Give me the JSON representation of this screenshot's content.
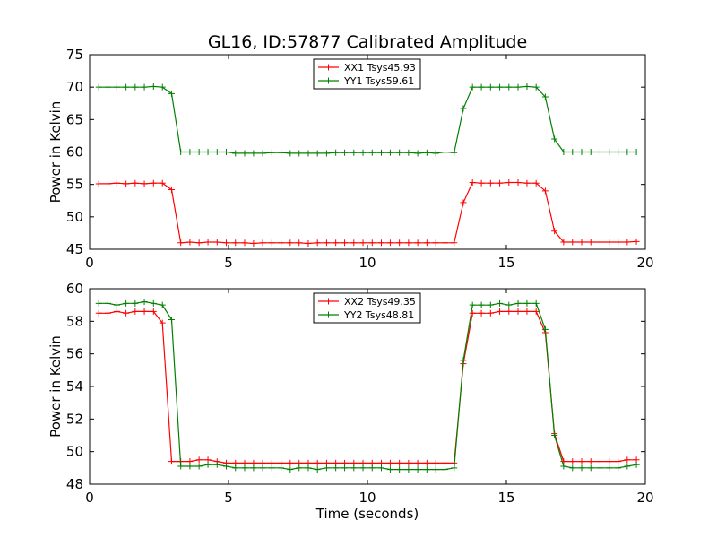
{
  "title": "GL16, ID:57877 Calibrated Amplitude",
  "chart_data": [
    {
      "type": "line",
      "title": "GL16, ID:57877 Calibrated Amplitude",
      "xlabel": "",
      "ylabel": "Power in Kelvin",
      "xlim": [
        0,
        20
      ],
      "ylim": [
        45,
        75
      ],
      "xticks": [
        0,
        5,
        10,
        15,
        20
      ],
      "yticks": [
        45,
        50,
        55,
        60,
        65,
        70,
        75
      ],
      "grid": false,
      "legend": "top-center",
      "x": [
        0.33,
        0.66,
        0.98,
        1.31,
        1.64,
        1.97,
        2.3,
        2.62,
        2.95,
        3.28,
        3.61,
        3.94,
        4.26,
        4.59,
        4.92,
        5.25,
        5.58,
        5.9,
        6.23,
        6.56,
        6.89,
        7.22,
        7.54,
        7.87,
        8.2,
        8.53,
        8.86,
        9.18,
        9.51,
        9.84,
        10.17,
        10.5,
        10.82,
        11.15,
        11.48,
        11.81,
        12.14,
        12.46,
        12.79,
        13.12,
        13.45,
        13.78,
        14.1,
        14.43,
        14.76,
        15.09,
        15.42,
        15.74,
        16.07,
        16.4,
        16.73,
        17.06,
        17.38,
        17.71,
        18.04,
        18.37,
        18.7,
        19.02,
        19.35,
        19.68
      ],
      "series": [
        {
          "name": "XX1 Tsys45.93",
          "color": "#ff0000",
          "values": [
            55.1,
            55.1,
            55.2,
            55.1,
            55.2,
            55.1,
            55.2,
            55.2,
            54.2,
            46.0,
            46.1,
            46.0,
            46.1,
            46.1,
            46.0,
            46.0,
            46.0,
            45.9,
            46.0,
            46.0,
            46.0,
            46.0,
            46.0,
            45.9,
            46.0,
            46.0,
            46.0,
            46.0,
            46.0,
            46.0,
            46.0,
            46.0,
            46.0,
            46.0,
            46.0,
            46.0,
            46.0,
            46.0,
            46.0,
            46.0,
            52.2,
            55.3,
            55.2,
            55.2,
            55.2,
            55.3,
            55.3,
            55.2,
            55.2,
            54.0,
            47.8,
            46.1,
            46.1,
            46.1,
            46.1,
            46.1,
            46.1,
            46.1,
            46.1,
            46.2
          ]
        },
        {
          "name": "YY1 Tsys59.61",
          "color": "#008000",
          "values": [
            70.0,
            70.0,
            70.0,
            70.0,
            70.0,
            70.0,
            70.1,
            70.0,
            69.0,
            60.0,
            60.0,
            60.0,
            60.0,
            60.0,
            60.0,
            59.8,
            59.8,
            59.8,
            59.8,
            59.9,
            59.9,
            59.8,
            59.8,
            59.8,
            59.8,
            59.8,
            59.9,
            59.9,
            59.9,
            59.9,
            59.9,
            59.9,
            59.9,
            59.9,
            59.9,
            59.8,
            59.9,
            59.8,
            60.0,
            59.9,
            66.7,
            70.0,
            70.0,
            70.0,
            70.0,
            70.0,
            70.0,
            70.1,
            70.0,
            68.5,
            62.0,
            60.0,
            60.0,
            60.0,
            60.0,
            60.0,
            60.0,
            60.0,
            60.0,
            60.0
          ]
        }
      ]
    },
    {
      "type": "line",
      "title": "",
      "xlabel": "Time (seconds)",
      "ylabel": "Power in Kelvin",
      "xlim": [
        0,
        20
      ],
      "ylim": [
        48,
        60
      ],
      "xticks": [
        0,
        5,
        10,
        15,
        20
      ],
      "yticks": [
        48,
        50,
        52,
        54,
        56,
        58,
        60
      ],
      "grid": false,
      "legend": "top-center",
      "x": [
        0.33,
        0.66,
        0.98,
        1.31,
        1.64,
        1.97,
        2.3,
        2.62,
        2.95,
        3.28,
        3.61,
        3.94,
        4.26,
        4.59,
        4.92,
        5.25,
        5.58,
        5.9,
        6.23,
        6.56,
        6.89,
        7.22,
        7.54,
        7.87,
        8.2,
        8.53,
        8.86,
        9.18,
        9.51,
        9.84,
        10.17,
        10.5,
        10.82,
        11.15,
        11.48,
        11.81,
        12.14,
        12.46,
        12.79,
        13.12,
        13.45,
        13.78,
        14.1,
        14.43,
        14.76,
        15.09,
        15.42,
        15.74,
        16.07,
        16.4,
        16.73,
        17.06,
        17.38,
        17.71,
        18.04,
        18.37,
        18.7,
        19.02,
        19.35,
        19.68
      ],
      "series": [
        {
          "name": "XX2 Tsys49.35",
          "color": "#ff0000",
          "values": [
            58.5,
            58.5,
            58.6,
            58.5,
            58.6,
            58.6,
            58.6,
            57.9,
            49.4,
            49.4,
            49.4,
            49.5,
            49.5,
            49.4,
            49.3,
            49.3,
            49.3,
            49.3,
            49.3,
            49.3,
            49.3,
            49.3,
            49.3,
            49.3,
            49.3,
            49.3,
            49.3,
            49.3,
            49.3,
            49.3,
            49.3,
            49.3,
            49.3,
            49.3,
            49.3,
            49.3,
            49.3,
            49.3,
            49.3,
            49.3,
            55.4,
            58.5,
            58.5,
            58.5,
            58.6,
            58.6,
            58.6,
            58.6,
            58.6,
            57.3,
            51.1,
            49.4,
            49.4,
            49.4,
            49.4,
            49.4,
            49.4,
            49.4,
            49.5,
            49.5
          ]
        },
        {
          "name": "YY2 Tsys48.81",
          "color": "#008000",
          "values": [
            59.1,
            59.1,
            59.0,
            59.1,
            59.1,
            59.2,
            59.1,
            59.0,
            58.1,
            49.1,
            49.1,
            49.1,
            49.2,
            49.2,
            49.1,
            49.0,
            49.0,
            49.0,
            49.0,
            49.0,
            49.0,
            48.9,
            49.0,
            49.0,
            48.9,
            49.0,
            49.0,
            49.0,
            49.0,
            49.0,
            49.0,
            49.0,
            48.9,
            48.9,
            48.9,
            48.9,
            48.9,
            48.9,
            48.9,
            49.0,
            55.6,
            59.0,
            59.0,
            59.0,
            59.1,
            59.0,
            59.1,
            59.1,
            59.1,
            57.5,
            51.0,
            49.1,
            49.0,
            49.0,
            49.0,
            49.0,
            49.0,
            49.0,
            49.1,
            49.2
          ]
        }
      ]
    }
  ]
}
